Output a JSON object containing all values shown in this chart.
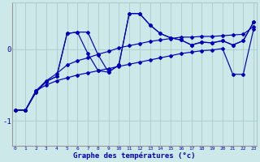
{
  "xlabel": "Graphe des températures (°c)",
  "x_ticks": [
    0,
    1,
    2,
    3,
    4,
    5,
    6,
    7,
    8,
    9,
    10,
    11,
    12,
    13,
    14,
    15,
    16,
    17,
    18,
    19,
    20,
    21,
    22,
    23
  ],
  "yticks": [
    -1,
    0
  ],
  "ylim": [
    -1.35,
    0.65
  ],
  "xlim": [
    -0.3,
    23.3
  ],
  "bg_color": "#cce8e8",
  "line_color": "#0000bb",
  "grid_color": "#aacccc",
  "line_a": [
    -0.85,
    -0.85,
    -0.6,
    -0.45,
    -0.38,
    0.22,
    0.24,
    0.24,
    -0.08,
    -0.32,
    -0.22,
    0.5,
    0.5,
    0.34,
    0.22,
    0.16,
    0.13,
    0.06,
    0.1,
    0.09,
    0.12,
    0.06,
    0.12,
    0.38
  ],
  "line_b": [
    -0.85,
    -0.85,
    -0.6,
    -0.45,
    -0.38,
    0.22,
    0.24,
    -0.06,
    -0.3,
    -0.32,
    -0.22,
    0.5,
    0.5,
    0.34,
    0.22,
    0.16,
    0.13,
    0.06,
    0.1,
    0.09,
    0.12,
    0.06,
    0.12,
    0.38
  ],
  "line_c": [
    -0.85,
    -0.85,
    -0.58,
    -0.44,
    -0.34,
    -0.22,
    -0.16,
    -0.12,
    -0.07,
    -0.03,
    0.02,
    0.05,
    0.08,
    0.11,
    0.13,
    0.15,
    0.17,
    0.17,
    0.18,
    0.18,
    0.19,
    0.2,
    0.21,
    0.32
  ],
  "line_d": [
    -0.85,
    -0.85,
    -0.58,
    -0.5,
    -0.44,
    -0.4,
    -0.36,
    -0.33,
    -0.3,
    -0.27,
    -0.24,
    -0.21,
    -0.18,
    -0.15,
    -0.12,
    -0.09,
    -0.06,
    -0.04,
    -0.02,
    -0.01,
    0.01,
    -0.35,
    -0.35,
    0.28
  ]
}
